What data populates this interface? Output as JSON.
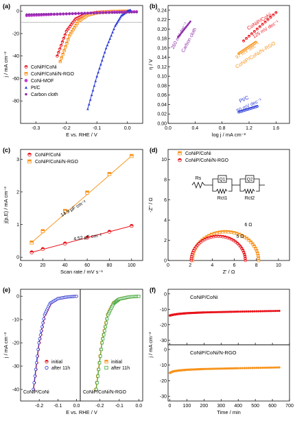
{
  "colors": {
    "red": "#e8141c",
    "orange": "#f7941d",
    "magenta": "#c13bd0",
    "blue": "#2b3bd6",
    "purple": "#8e2fa8",
    "green": "#3aa537",
    "gray": "#999999"
  },
  "chart_data": [
    {
      "panel": "(a)",
      "type": "line",
      "xlabel": "E vs. RHE / V",
      "ylabel": "j / mA cm⁻²",
      "xlim": [
        -0.35,
        0.05
      ],
      "ylim": [
        -100,
        5
      ],
      "xticks": [
        "-0.3",
        "-0.2",
        "-0.1",
        "0.0"
      ],
      "yticks": [
        "0",
        "-20",
        "-40",
        "-60",
        "-80"
      ],
      "legend_position": "lower-left",
      "series": [
        {
          "name": "CoNiP/CoNi",
          "color": "red",
          "marker": "half-circle",
          "points": [
            [
              -0.23,
              -40
            ],
            [
              -0.2,
              -18
            ],
            [
              -0.17,
              -7
            ],
            [
              -0.14,
              -3
            ],
            [
              -0.1,
              -1
            ],
            [
              -0.05,
              -0.3
            ],
            [
              0.0,
              0
            ]
          ]
        },
        {
          "name": "CoNiP/CoNi/N-RGO",
          "color": "orange",
          "marker": "half-square",
          "points": [
            [
              -0.22,
              -45
            ],
            [
              -0.19,
              -22
            ],
            [
              -0.16,
              -9
            ],
            [
              -0.13,
              -3.5
            ],
            [
              -0.1,
              -1.5
            ],
            [
              -0.05,
              -0.4
            ],
            [
              0.0,
              0
            ]
          ]
        },
        {
          "name": "CoNi-MOF",
          "color": "magenta",
          "marker": "circle",
          "points": [
            [
              -0.33,
              -4
            ],
            [
              -0.25,
              -3
            ],
            [
              -0.15,
              -2
            ],
            [
              -0.05,
              -1
            ],
            [
              0.03,
              -0.5
            ]
          ]
        },
        {
          "name": "Pt/C",
          "color": "blue",
          "marker": "triangle",
          "points": [
            [
              -0.13,
              -87
            ],
            [
              -0.1,
              -58
            ],
            [
              -0.07,
              -33
            ],
            [
              -0.04,
              -13
            ],
            [
              -0.02,
              -4
            ],
            [
              0.0,
              0
            ],
            [
              0.01,
              1
            ]
          ]
        },
        {
          "name": "Carbon cloth",
          "color": "purple",
          "marker": "star",
          "points": [
            [
              -0.33,
              -3
            ],
            [
              -0.25,
              -2.5
            ],
            [
              -0.15,
              -2
            ],
            [
              -0.05,
              -1.5
            ],
            [
              0.03,
              -1
            ]
          ]
        }
      ]
    },
    {
      "panel": "(b)",
      "type": "line",
      "xlabel": "log j / mA cm⁻²",
      "ylabel": "η / V",
      "xlim": [
        0.0,
        1.8
      ],
      "ylim": [
        0.0,
        0.25
      ],
      "xticks": [
        "0.0",
        "0.4",
        "0.8",
        "1.2",
        "1.6"
      ],
      "yticks": [
        "0.00",
        "0.02",
        "0.04",
        "0.06",
        "0.08",
        "0.10",
        "0.12",
        "0.14",
        "0.16",
        "0.18",
        "0.20",
        "0.22",
        "0.24"
      ],
      "series": [
        {
          "name": "Carbon cloth",
          "color": "purple",
          "slope_label": "260 mV dec⁻¹",
          "points": [
            [
              0.15,
              0.183
            ],
            [
              0.33,
              0.216
            ]
          ]
        },
        {
          "name": "CoNiP/CoNi",
          "color": "red",
          "slope_label": "125 mV dec⁻¹",
          "points": [
            [
              1.12,
              0.175
            ],
            [
              1.6,
              0.235
            ]
          ]
        },
        {
          "name": "CoNiP/CoNi/N-RGO",
          "color": "orange",
          "slope_label": "97 mV dec⁻¹",
          "points": [
            [
              1.05,
              0.148
            ],
            [
              1.3,
              0.172
            ]
          ]
        },
        {
          "name": "Pt/C",
          "color": "blue",
          "slope_label": "50 mV dec⁻¹",
          "points": [
            [
              1.05,
              0.024
            ],
            [
              1.32,
              0.036
            ]
          ]
        }
      ],
      "labels": [
        "CoNiP/CoNi",
        "CoNiP/CoNi/N-RGO",
        "Carbon cloth",
        "Pt/C"
      ]
    },
    {
      "panel": "(c)",
      "type": "scatter",
      "xlabel": "Scan rate / mV s⁻¹",
      "ylabel": "j(p,E) / mA cm⁻²",
      "xlim": [
        0,
        110
      ],
      "ylim": [
        -0.1,
        3.3
      ],
      "xticks": [
        "0",
        "20",
        "40",
        "60",
        "80",
        "100"
      ],
      "yticks": [
        "0",
        "1",
        "2",
        "3"
      ],
      "legend_position": "top-left",
      "series": [
        {
          "name": "CoNiP/CoNi",
          "color": "red",
          "marker": "half-circle",
          "slope_label": "4.52 μF cm⁻²",
          "x": [
            10,
            20,
            40,
            60,
            80,
            100
          ],
          "y": [
            0.15,
            0.25,
            0.42,
            0.6,
            0.78,
            0.96
          ]
        },
        {
          "name": "CoNiP/CoNi/N-RGO",
          "color": "orange",
          "marker": "half-square",
          "slope_label": "14.9 μF cm⁻²",
          "x": [
            10,
            20,
            40,
            60,
            80,
            100
          ],
          "y": [
            0.45,
            0.8,
            1.42,
            1.98,
            2.55,
            3.1
          ]
        }
      ]
    },
    {
      "panel": "(d)",
      "type": "scatter",
      "xlabel": "Z' / Ω",
      "ylabel": "-Z'' / Ω",
      "xlim": [
        0,
        11
      ],
      "ylim": [
        0,
        11
      ],
      "xticks": [
        "0",
        "2",
        "4",
        "6",
        "8",
        "10"
      ],
      "yticks": [
        "0",
        "2",
        "4",
        "6",
        "8",
        "10"
      ],
      "legend_position": "top-left",
      "series": [
        {
          "name": "CoNiP/CoNi",
          "color": "orange",
          "marker": "half-square",
          "arc_label": "6 Ω",
          "arc": [
            2.2,
            8.2,
            2.85
          ]
        },
        {
          "name": "CoNiP/CoNi/N-RGO",
          "color": "red",
          "marker": "half-circle",
          "arc_label": "5 Ω",
          "arc": [
            2.1,
            7.0,
            2.4
          ]
        }
      ],
      "circuit_labels": [
        "Rs",
        "Q1",
        "Q2",
        "Rct1",
        "Rct2"
      ]
    },
    {
      "panel": "(e)",
      "type": "line",
      "xlabel": "E vs. RHE / V",
      "ylabel": "j / mA cm⁻²",
      "ylim": [
        -45,
        3
      ],
      "xticks": [
        "-0.2",
        "-0.1",
        "0.0"
      ],
      "yticks": [
        "0",
        "-10",
        "-20",
        "-30",
        "-40"
      ],
      "subpanels": [
        {
          "title": "CoNiP/CoNi",
          "xlim": [
            -0.3,
            0.02
          ],
          "series": [
            {
              "name": "initial",
              "color": "red",
              "marker": "half-circle",
              "points": [
                [
                  -0.23,
                  -40
                ],
                [
                  -0.2,
                  -20
                ],
                [
                  -0.17,
                  -8
                ],
                [
                  -0.14,
                  -3
                ],
                [
                  -0.1,
                  -1
                ],
                [
                  -0.05,
                  -0.3
                ],
                [
                  0.0,
                  0
                ]
              ]
            },
            {
              "name": "after 11h",
              "color": "blue",
              "marker": "open-circle",
              "points": [
                [
                  -0.232,
                  -40
                ],
                [
                  -0.202,
                  -20
                ],
                [
                  -0.172,
                  -8
                ],
                [
                  -0.142,
                  -3
                ],
                [
                  -0.1,
                  -1
                ],
                [
                  -0.05,
                  -0.3
                ],
                [
                  0.0,
                  0
                ]
              ]
            }
          ],
          "legend": [
            "initial",
            "after 11h"
          ]
        },
        {
          "title": "CoNiP/CoNi/N-RGO",
          "xlim": [
            -0.3,
            0.02
          ],
          "series": [
            {
              "name": "initial",
              "color": "orange",
              "marker": "half-square",
              "points": [
                [
                  -0.22,
                  -40
                ],
                [
                  -0.19,
                  -20
                ],
                [
                  -0.16,
                  -8
                ],
                [
                  -0.13,
                  -3
                ],
                [
                  -0.1,
                  -1.2
                ],
                [
                  -0.05,
                  -0.3
                ],
                [
                  0.0,
                  0
                ]
              ]
            },
            {
              "name": "after 11h",
              "color": "green",
              "marker": "open-square",
              "points": [
                [
                  -0.218,
                  -40
                ],
                [
                  -0.188,
                  -20
                ],
                [
                  -0.158,
                  -8
                ],
                [
                  -0.128,
                  -3
                ],
                [
                  -0.1,
                  -1.2
                ],
                [
                  -0.05,
                  -0.3
                ],
                [
                  0.0,
                  0
                ]
              ]
            }
          ],
          "legend": [
            "initial",
            "after 11h"
          ]
        }
      ]
    },
    {
      "panel": "(f)",
      "type": "line",
      "xlabel": "Time / min",
      "ylabel": "j / mA cm⁻²",
      "xlim": [
        -10,
        700
      ],
      "xticks": [
        "0",
        "100",
        "200",
        "300",
        "400",
        "500",
        "600",
        "700"
      ],
      "subpanels": [
        {
          "title": "CoNiP/CoNi",
          "color": "red",
          "ylim": [
            -33,
            3
          ],
          "yticks": [
            "0",
            "-10",
            "-20",
            "-30"
          ],
          "points": [
            [
              0,
              -14
            ],
            [
              20,
              -13.5
            ],
            [
              50,
              -13
            ],
            [
              100,
              -12.5
            ],
            [
              200,
              -12
            ],
            [
              400,
              -11.5
            ],
            [
              640,
              -11
            ]
          ]
        },
        {
          "title": "CoNiP/CoNi/N-RGO",
          "color": "orange",
          "ylim": [
            -33,
            3
          ],
          "yticks": [
            "0",
            "-10",
            "-20",
            "-30"
          ],
          "points": [
            [
              0,
              -15
            ],
            [
              20,
              -14
            ],
            [
              50,
              -13.5
            ],
            [
              100,
              -13
            ],
            [
              200,
              -12.5
            ],
            [
              400,
              -12
            ],
            [
              640,
              -11.5
            ]
          ]
        }
      ]
    }
  ]
}
